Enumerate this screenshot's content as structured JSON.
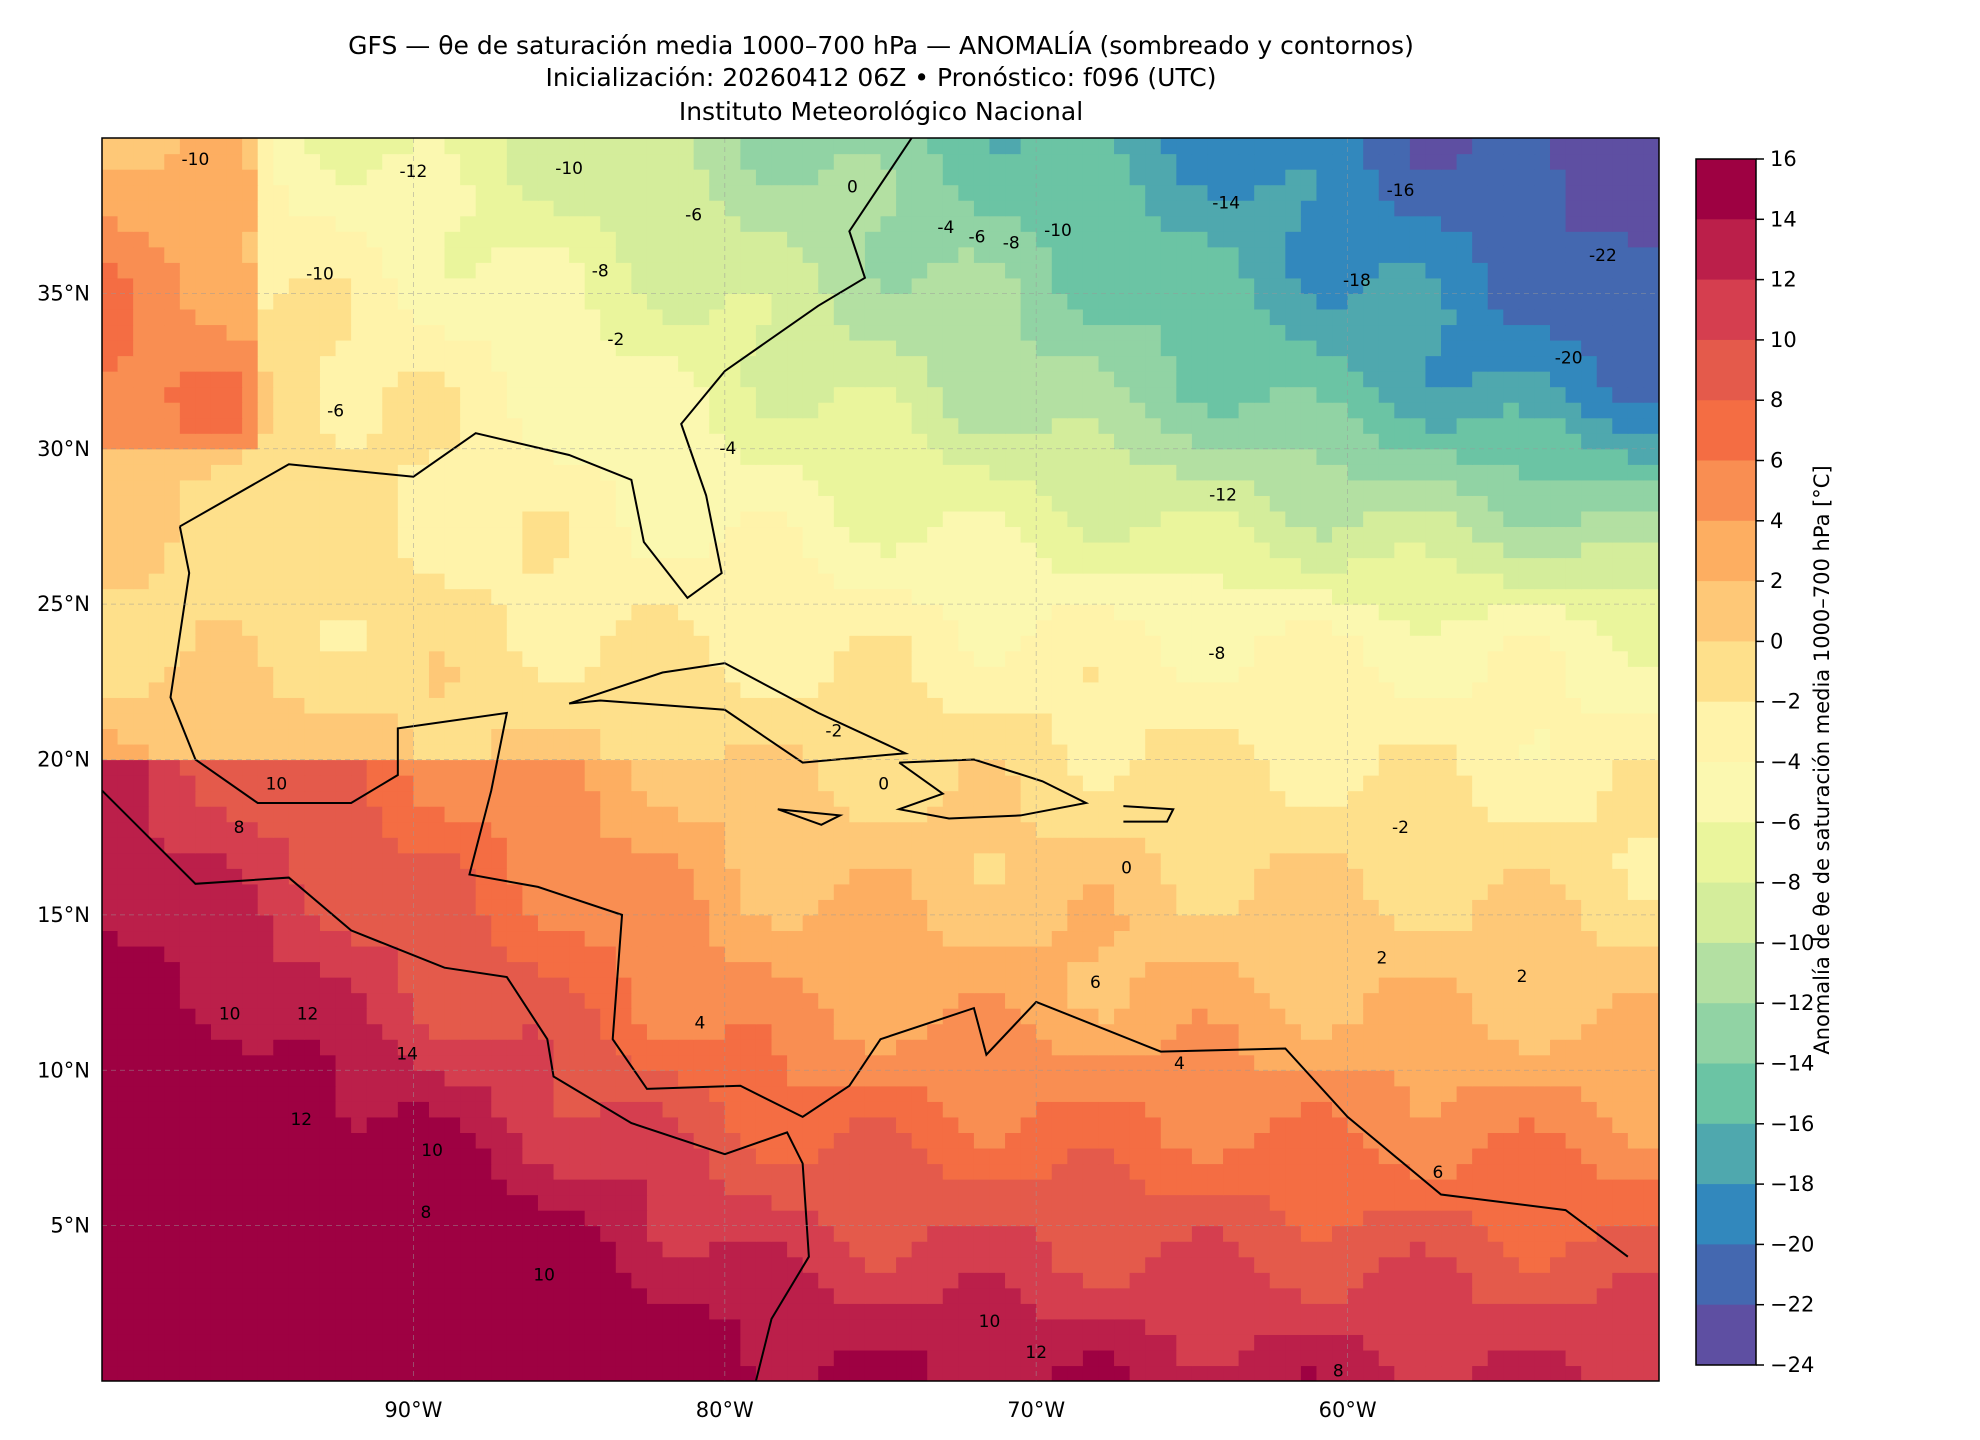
{
  "title": {
    "line1": "GFS — θe de saturación media 1000–700 hPa — ANOMALÍA (sombreado y contornos)",
    "line2": "Inicialización: 20260412 06Z   •   Pronóstico: f096 (UTC)",
    "line3": "Instituto Meteorológico Nacional"
  },
  "map": {
    "lon_range": [
      -100,
      -50
    ],
    "lat_range": [
      0,
      40
    ],
    "lon_ticks": [
      {
        "value": -90,
        "label": "90°W"
      },
      {
        "value": -80,
        "label": "80°W"
      },
      {
        "value": -70,
        "label": "70°W"
      },
      {
        "value": -60,
        "label": "60°W"
      }
    ],
    "lat_ticks": [
      {
        "value": 35,
        "label": "35°N"
      },
      {
        "value": 30,
        "label": "30°N"
      },
      {
        "value": 25,
        "label": "25°N"
      },
      {
        "value": 20,
        "label": "20°N"
      },
      {
        "value": 15,
        "label": "15°N"
      },
      {
        "value": 10,
        "label": "10°N"
      },
      {
        "value": 5,
        "label": "5°N"
      }
    ],
    "contour_labels": [
      {
        "text": "-10",
        "lon": -97,
        "lat": 39.3
      },
      {
        "text": "-12",
        "lon": -90,
        "lat": 38.9
      },
      {
        "text": "-10",
        "lon": -85,
        "lat": 39.0
      },
      {
        "text": "-6",
        "lon": -81,
        "lat": 37.5
      },
      {
        "text": "-10",
        "lon": -93,
        "lat": 35.6
      },
      {
        "text": "-8",
        "lon": -84,
        "lat": 35.7
      },
      {
        "text": "-2",
        "lon": -83.5,
        "lat": 33.5
      },
      {
        "text": "-6",
        "lon": -92.5,
        "lat": 31.2
      },
      {
        "text": "-4",
        "lon": -79.9,
        "lat": 30.0
      },
      {
        "text": "0",
        "lon": -75.9,
        "lat": 38.4
      },
      {
        "text": "-4",
        "lon": -72.9,
        "lat": 37.1
      },
      {
        "text": "-6",
        "lon": -71.9,
        "lat": 36.8
      },
      {
        "text": "-8",
        "lon": -70.8,
        "lat": 36.6
      },
      {
        "text": "-10",
        "lon": -69.3,
        "lat": 37.0
      },
      {
        "text": "-14",
        "lon": -63.9,
        "lat": 37.9
      },
      {
        "text": "-16",
        "lon": -58.3,
        "lat": 38.3
      },
      {
        "text": "-18",
        "lon": -59.7,
        "lat": 35.4
      },
      {
        "text": "-20",
        "lon": -52.9,
        "lat": 32.9
      },
      {
        "text": "-22",
        "lon": -51.8,
        "lat": 36.2
      },
      {
        "text": "-12",
        "lon": -64.0,
        "lat": 28.5
      },
      {
        "text": "-8",
        "lon": -64.2,
        "lat": 23.4
      },
      {
        "text": "-2",
        "lon": -76.5,
        "lat": 20.9
      },
      {
        "text": "0",
        "lon": -74.9,
        "lat": 19.2
      },
      {
        "text": "0",
        "lon": -67.1,
        "lat": 16.5
      },
      {
        "text": "-2",
        "lon": -58.3,
        "lat": 17.8
      },
      {
        "text": "2",
        "lon": -58.9,
        "lat": 13.6
      },
      {
        "text": "2",
        "lon": -54.4,
        "lat": 13.0
      },
      {
        "text": "4",
        "lon": -80.8,
        "lat": 11.5
      },
      {
        "text": "6",
        "lon": -68.1,
        "lat": 12.8
      },
      {
        "text": "4",
        "lon": -65.4,
        "lat": 10.2
      },
      {
        "text": "6",
        "lon": -57.1,
        "lat": 6.7
      },
      {
        "text": "10",
        "lon": -95.9,
        "lat": 11.8
      },
      {
        "text": "12",
        "lon": -93.4,
        "lat": 11.8
      },
      {
        "text": "14",
        "lon": -90.2,
        "lat": 10.5
      },
      {
        "text": "12",
        "lon": -93.6,
        "lat": 8.4
      },
      {
        "text": "10",
        "lon": -89.4,
        "lat": 7.4
      },
      {
        "text": "8",
        "lon": -89.6,
        "lat": 5.4
      },
      {
        "text": "10",
        "lon": -85.8,
        "lat": 3.4
      },
      {
        "text": "10",
        "lon": -71.5,
        "lat": 1.9
      },
      {
        "text": "12",
        "lon": -70.0,
        "lat": 0.9
      },
      {
        "text": "8",
        "lon": -60.3,
        "lat": 0.3
      },
      {
        "text": "10",
        "lon": -94.4,
        "lat": 19.2
      },
      {
        "text": "8",
        "lon": -95.6,
        "lat": 17.8
      }
    ]
  },
  "colorbar": {
    "label": "Anomalía de θe de saturación media 1000–700 hPa [°C]",
    "levels": [
      "16",
      "14",
      "12",
      "10",
      "8",
      "6",
      "4",
      "2",
      "0",
      "−2",
      "−4",
      "−6",
      "−8",
      "−10",
      "−12",
      "−14",
      "−16",
      "−18",
      "−20",
      "−22",
      "−24"
    ],
    "colors": [
      "#9e0142",
      "#bb1f4a",
      "#d53e4f",
      "#e45a4b",
      "#f46d43",
      "#f98e52",
      "#fdae61",
      "#fec877",
      "#fee08b",
      "#fff3aa",
      "#fbf8b0",
      "#eaf59c",
      "#d4ed9b",
      "#b3e0a2",
      "#91d3a4",
      "#6bc4a4",
      "#4fa8ae",
      "#3288bd",
      "#4468b0",
      "#5e4fa2"
    ]
  }
}
